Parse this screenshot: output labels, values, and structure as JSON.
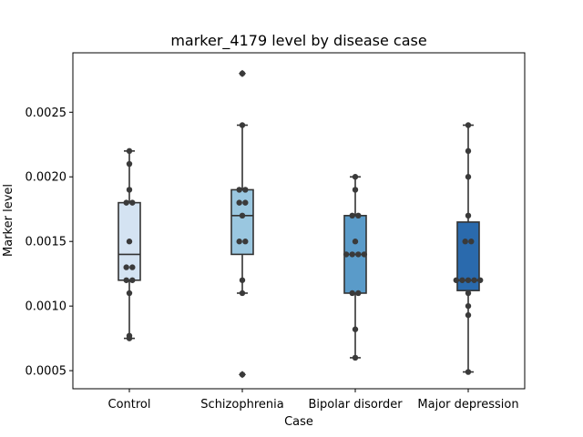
{
  "chart_data": {
    "type": "box",
    "title": "marker_4179 level by disease case",
    "xlabel": "Case",
    "ylabel": "Marker level",
    "categories": [
      "Control",
      "Schizophrenia",
      "Bipolar disorder",
      "Major depression"
    ],
    "ylim": [
      0.00036,
      0.00296
    ],
    "yticks": [
      0.0005,
      0.001,
      0.0015,
      0.002,
      0.0025
    ],
    "ytick_labels": [
      "0.0005",
      "0.0010",
      "0.0015",
      "0.0020",
      "0.0025"
    ],
    "grid": false,
    "boxes": [
      {
        "category": "Control",
        "color": "#d4e3f2",
        "whisker_low": 0.00075,
        "q1": 0.0012,
        "median": 0.0014,
        "q3": 0.0018,
        "whisker_high": 0.0022,
        "outliers": []
      },
      {
        "category": "Schizophrenia",
        "color": "#9ac7e0",
        "whisker_low": 0.0011,
        "q1": 0.0014,
        "median": 0.0017,
        "q3": 0.0019,
        "whisker_high": 0.0024,
        "outliers": [
          0.00047,
          0.0028
        ]
      },
      {
        "category": "Bipolar disorder",
        "color": "#5a9bc9",
        "whisker_low": 0.0006,
        "q1": 0.0011,
        "median": 0.0014,
        "q3": 0.0017,
        "whisker_high": 0.002,
        "outliers": []
      },
      {
        "category": "Major depression",
        "color": "#2a6aad",
        "whisker_low": 0.00049,
        "q1": 0.00112,
        "median": 0.0012,
        "q3": 0.00165,
        "whisker_high": 0.0024,
        "outliers": []
      }
    ],
    "points": [
      {
        "category": "Control",
        "values": [
          0.0022,
          0.0021,
          0.0019,
          0.0018,
          0.0018,
          0.0015,
          0.0013,
          0.0013,
          0.0012,
          0.0012,
          0.0011,
          0.00077,
          0.00075
        ]
      },
      {
        "category": "Schizophrenia",
        "values": [
          0.0028,
          0.0024,
          0.0019,
          0.0019,
          0.0018,
          0.0018,
          0.0017,
          0.0015,
          0.0015,
          0.0012,
          0.0011,
          0.00047
        ]
      },
      {
        "category": "Bipolar disorder",
        "values": [
          0.002,
          0.0019,
          0.0017,
          0.0017,
          0.0015,
          0.0014,
          0.0014,
          0.0014,
          0.0014,
          0.0011,
          0.0011,
          0.00082,
          0.0006
        ]
      },
      {
        "category": "Major depression",
        "values": [
          0.0024,
          0.0022,
          0.002,
          0.0017,
          0.0015,
          0.0015,
          0.0012,
          0.0012,
          0.0012,
          0.0012,
          0.0012,
          0.0011,
          0.001,
          0.00093,
          0.00049
        ]
      }
    ],
    "point_color": "#3a3a3a",
    "line_color": "#333333"
  }
}
